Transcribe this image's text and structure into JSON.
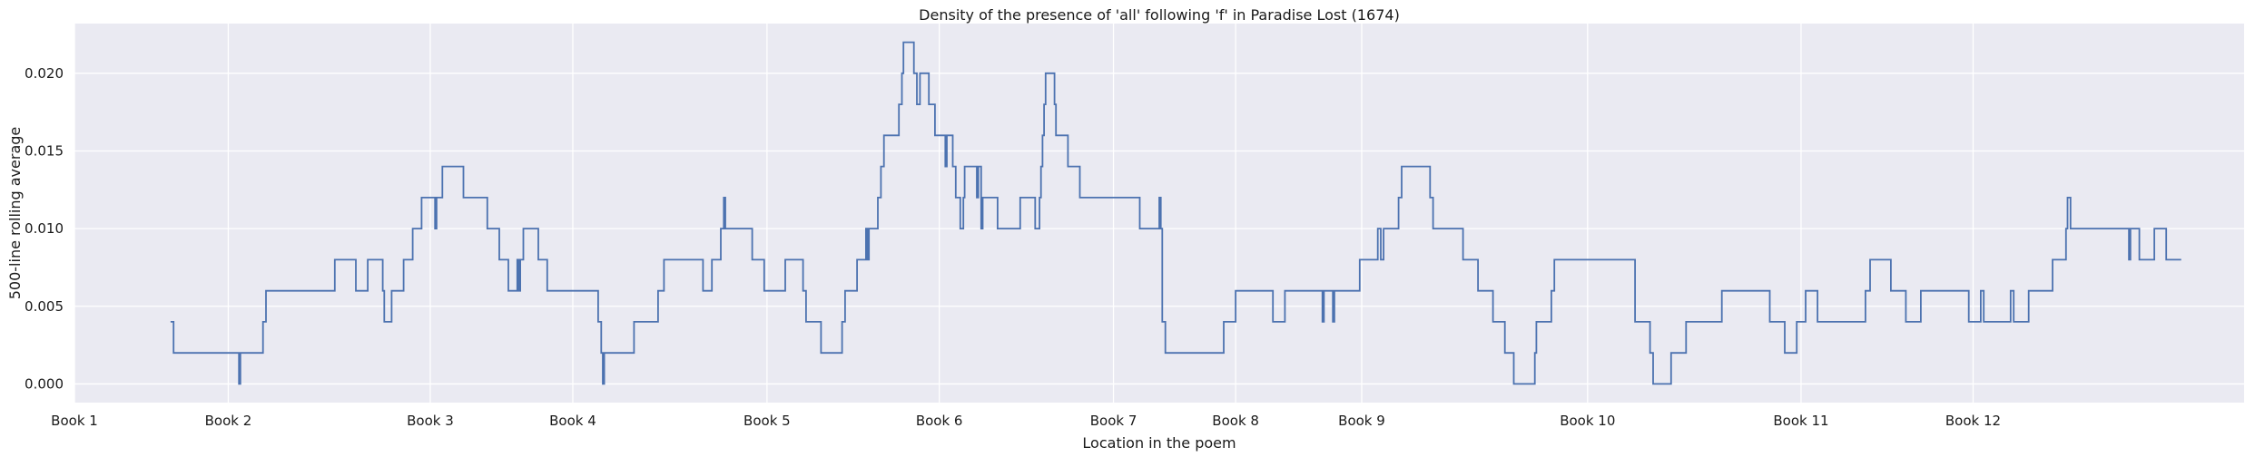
{
  "chart_data": {
    "type": "line",
    "title": "Density of the presence of 'all' following 'f' in Paradise Lost (1674)",
    "xlabel": "Location in the poem",
    "ylabel": "500-line rolling average",
    "ylim": [
      -0.0012,
      0.0232
    ],
    "xlim": [
      0,
      100
    ],
    "grid": true,
    "legend": "none",
    "colors": {
      "line": "#4c72b0",
      "plot_background": "#eaeaf2",
      "grid": "#ffffff"
    },
    "x_ticks": [
      {
        "label": "Book 1",
        "x": 0
      },
      {
        "label": "Book 2",
        "x": 7.09
      },
      {
        "label": "Book 3",
        "x": 16.4
      },
      {
        "label": "Book 4",
        "x": 22.97
      },
      {
        "label": "Book 5",
        "x": 31.92
      },
      {
        "label": "Book 6",
        "x": 39.86
      },
      {
        "label": "Book 7",
        "x": 47.89
      },
      {
        "label": "Book 8",
        "x": 53.52
      },
      {
        "label": "Book 9",
        "x": 59.33
      },
      {
        "label": "Book 10",
        "x": 69.74
      },
      {
        "label": "Book 11",
        "x": 79.58
      },
      {
        "label": "Book 12",
        "x": 87.51
      }
    ],
    "y_ticks": [
      {
        "label": "0.000",
        "y": 0.0
      },
      {
        "label": "0.005",
        "y": 0.005
      },
      {
        "label": "0.010",
        "y": 0.01
      },
      {
        "label": "0.015",
        "y": 0.015
      },
      {
        "label": "0.020",
        "y": 0.02
      }
    ],
    "series": [
      {
        "points": [
          [
            4.43,
            0.004
          ],
          [
            4.57,
            0.002
          ],
          [
            7.51,
            0.002
          ],
          [
            7.58,
            0.0
          ],
          [
            7.65,
            0.002
          ],
          [
            8.55,
            0.002
          ],
          [
            8.69,
            0.004
          ],
          [
            8.83,
            0.006
          ],
          [
            11.87,
            0.006
          ],
          [
            12.0,
            0.008
          ],
          [
            12.14,
            0.008
          ],
          [
            12.83,
            0.008
          ],
          [
            12.97,
            0.006
          ],
          [
            13.38,
            0.006
          ],
          [
            13.52,
            0.008
          ],
          [
            14.07,
            0.008
          ],
          [
            14.21,
            0.006
          ],
          [
            14.28,
            0.004
          ],
          [
            14.48,
            0.004
          ],
          [
            14.62,
            0.006
          ],
          [
            15.04,
            0.006
          ],
          [
            15.17,
            0.008
          ],
          [
            15.45,
            0.008
          ],
          [
            15.59,
            0.01
          ],
          [
            15.86,
            0.01
          ],
          [
            16.0,
            0.012
          ],
          [
            16.55,
            0.012
          ],
          [
            16.62,
            0.01
          ],
          [
            16.69,
            0.012
          ],
          [
            16.82,
            0.012
          ],
          [
            16.96,
            0.014
          ],
          [
            17.79,
            0.014
          ],
          [
            17.93,
            0.012
          ],
          [
            18.89,
            0.012
          ],
          [
            19.03,
            0.01
          ],
          [
            19.44,
            0.01
          ],
          [
            19.58,
            0.008
          ],
          [
            19.86,
            0.008
          ],
          [
            20.0,
            0.006
          ],
          [
            20.27,
            0.006
          ],
          [
            20.41,
            0.008
          ],
          [
            20.48,
            0.006
          ],
          [
            20.55,
            0.008
          ],
          [
            20.69,
            0.01
          ],
          [
            21.24,
            0.01
          ],
          [
            21.38,
            0.008
          ],
          [
            21.65,
            0.008
          ],
          [
            21.79,
            0.006
          ],
          [
            24.0,
            0.006
          ],
          [
            24.14,
            0.004
          ],
          [
            24.28,
            0.002
          ],
          [
            24.35,
            0.0
          ],
          [
            24.42,
            0.002
          ],
          [
            25.66,
            0.002
          ],
          [
            25.79,
            0.004
          ],
          [
            26.76,
            0.004
          ],
          [
            26.9,
            0.006
          ],
          [
            27.17,
            0.008
          ],
          [
            28.83,
            0.008
          ],
          [
            28.97,
            0.006
          ],
          [
            29.24,
            0.006
          ],
          [
            29.38,
            0.008
          ],
          [
            29.65,
            0.008
          ],
          [
            29.79,
            0.01
          ],
          [
            29.86,
            0.01
          ],
          [
            29.93,
            0.012
          ],
          [
            30.0,
            0.01
          ],
          [
            31.1,
            0.01
          ],
          [
            31.24,
            0.008
          ],
          [
            31.65,
            0.008
          ],
          [
            31.79,
            0.006
          ],
          [
            32.62,
            0.006
          ],
          [
            32.76,
            0.008
          ],
          [
            33.45,
            0.008
          ],
          [
            33.58,
            0.006
          ],
          [
            33.72,
            0.004
          ],
          [
            34.28,
            0.004
          ],
          [
            34.41,
            0.002
          ],
          [
            35.24,
            0.002
          ],
          [
            35.38,
            0.004
          ],
          [
            35.52,
            0.006
          ],
          [
            35.93,
            0.006
          ],
          [
            36.07,
            0.008
          ],
          [
            36.34,
            0.008
          ],
          [
            36.48,
            0.01
          ],
          [
            36.55,
            0.008
          ],
          [
            36.62,
            0.01
          ],
          [
            36.9,
            0.01
          ],
          [
            37.03,
            0.012
          ],
          [
            37.17,
            0.014
          ],
          [
            37.31,
            0.016
          ],
          [
            37.86,
            0.016
          ],
          [
            38.0,
            0.018
          ],
          [
            38.14,
            0.02
          ],
          [
            38.21,
            0.022
          ],
          [
            38.62,
            0.022
          ],
          [
            38.69,
            0.02
          ],
          [
            38.83,
            0.018
          ],
          [
            38.97,
            0.02
          ],
          [
            39.24,
            0.02
          ],
          [
            39.38,
            0.018
          ],
          [
            39.52,
            0.018
          ],
          [
            39.66,
            0.016
          ],
          [
            40.07,
            0.016
          ],
          [
            40.14,
            0.014
          ],
          [
            40.21,
            0.016
          ],
          [
            40.34,
            0.016
          ],
          [
            40.48,
            0.014
          ],
          [
            40.62,
            0.012
          ],
          [
            40.76,
            0.012
          ],
          [
            40.83,
            0.01
          ],
          [
            40.97,
            0.012
          ],
          [
            41.03,
            0.014
          ],
          [
            41.52,
            0.014
          ],
          [
            41.59,
            0.012
          ],
          [
            41.66,
            0.014
          ],
          [
            41.79,
            0.01
          ],
          [
            41.86,
            0.012
          ],
          [
            42.48,
            0.012
          ],
          [
            42.55,
            0.01
          ],
          [
            43.45,
            0.01
          ],
          [
            43.59,
            0.012
          ],
          [
            44.14,
            0.012
          ],
          [
            44.28,
            0.01
          ],
          [
            44.41,
            0.01
          ],
          [
            44.48,
            0.012
          ],
          [
            44.55,
            0.014
          ],
          [
            44.62,
            0.016
          ],
          [
            44.69,
            0.018
          ],
          [
            44.76,
            0.02
          ],
          [
            45.1,
            0.02
          ],
          [
            45.17,
            0.018
          ],
          [
            45.24,
            0.016
          ],
          [
            45.66,
            0.016
          ],
          [
            45.79,
            0.014
          ],
          [
            46.21,
            0.014
          ],
          [
            46.34,
            0.012
          ],
          [
            48.97,
            0.012
          ],
          [
            49.1,
            0.01
          ],
          [
            49.93,
            0.01
          ],
          [
            50.0,
            0.012
          ],
          [
            50.07,
            0.01
          ],
          [
            50.14,
            0.004
          ],
          [
            50.28,
            0.002
          ],
          [
            52.83,
            0.002
          ],
          [
            52.97,
            0.004
          ],
          [
            53.38,
            0.004
          ],
          [
            53.52,
            0.006
          ],
          [
            55.1,
            0.006
          ],
          [
            55.24,
            0.004
          ],
          [
            55.66,
            0.004
          ],
          [
            55.79,
            0.006
          ],
          [
            57.45,
            0.006
          ],
          [
            57.52,
            0.004
          ],
          [
            57.59,
            0.006
          ],
          [
            57.93,
            0.006
          ],
          [
            58.0,
            0.004
          ],
          [
            58.07,
            0.006
          ],
          [
            59.1,
            0.006
          ],
          [
            59.24,
            0.008
          ],
          [
            59.93,
            0.008
          ],
          [
            60.07,
            0.01
          ],
          [
            60.21,
            0.008
          ],
          [
            60.34,
            0.01
          ],
          [
            60.9,
            0.01
          ],
          [
            61.03,
            0.012
          ],
          [
            61.17,
            0.014
          ],
          [
            62.34,
            0.014
          ],
          [
            62.48,
            0.012
          ],
          [
            62.62,
            0.01
          ],
          [
            63.86,
            0.01
          ],
          [
            64.0,
            0.008
          ],
          [
            64.55,
            0.008
          ],
          [
            64.69,
            0.006
          ],
          [
            65.24,
            0.006
          ],
          [
            65.38,
            0.004
          ],
          [
            65.79,
            0.004
          ],
          [
            65.93,
            0.002
          ],
          [
            66.21,
            0.002
          ],
          [
            66.34,
            0.0
          ],
          [
            67.17,
            0.0
          ],
          [
            67.31,
            0.002
          ],
          [
            67.38,
            0.004
          ],
          [
            67.93,
            0.004
          ],
          [
            68.07,
            0.006
          ],
          [
            68.21,
            0.008
          ],
          [
            71.79,
            0.008
          ],
          [
            71.93,
            0.004
          ],
          [
            72.48,
            0.004
          ],
          [
            72.62,
            0.002
          ],
          [
            72.76,
            0.0
          ],
          [
            73.45,
            0.0
          ],
          [
            73.59,
            0.002
          ],
          [
            74.14,
            0.002
          ],
          [
            74.28,
            0.004
          ],
          [
            75.79,
            0.004
          ],
          [
            75.93,
            0.006
          ],
          [
            78.0,
            0.006
          ],
          [
            78.14,
            0.004
          ],
          [
            78.69,
            0.004
          ],
          [
            78.83,
            0.002
          ],
          [
            79.24,
            0.002
          ],
          [
            79.38,
            0.004
          ],
          [
            79.65,
            0.004
          ],
          [
            79.79,
            0.006
          ],
          [
            80.21,
            0.006
          ],
          [
            80.34,
            0.004
          ],
          [
            82.41,
            0.004
          ],
          [
            82.55,
            0.006
          ],
          [
            82.76,
            0.008
          ],
          [
            83.59,
            0.008
          ],
          [
            83.72,
            0.006
          ],
          [
            84.28,
            0.006
          ],
          [
            84.41,
            0.004
          ],
          [
            84.97,
            0.004
          ],
          [
            85.1,
            0.006
          ],
          [
            87.17,
            0.006
          ],
          [
            87.31,
            0.004
          ],
          [
            87.72,
            0.004
          ],
          [
            87.86,
            0.006
          ],
          [
            88.0,
            0.004
          ],
          [
            89.1,
            0.004
          ],
          [
            89.24,
            0.006
          ],
          [
            89.38,
            0.004
          ],
          [
            89.93,
            0.004
          ],
          [
            90.07,
            0.006
          ],
          [
            91.03,
            0.006
          ],
          [
            91.17,
            0.008
          ],
          [
            91.66,
            0.008
          ],
          [
            91.79,
            0.01
          ],
          [
            91.86,
            0.012
          ],
          [
            92.0,
            0.01
          ],
          [
            94.62,
            0.01
          ],
          [
            94.69,
            0.008
          ],
          [
            94.76,
            0.01
          ],
          [
            95.03,
            0.01
          ],
          [
            95.17,
            0.008
          ],
          [
            95.72,
            0.008
          ],
          [
            95.86,
            0.01
          ],
          [
            96.28,
            0.01
          ],
          [
            96.41,
            0.008
          ],
          [
            97.1,
            0.008
          ]
        ]
      }
    ]
  }
}
